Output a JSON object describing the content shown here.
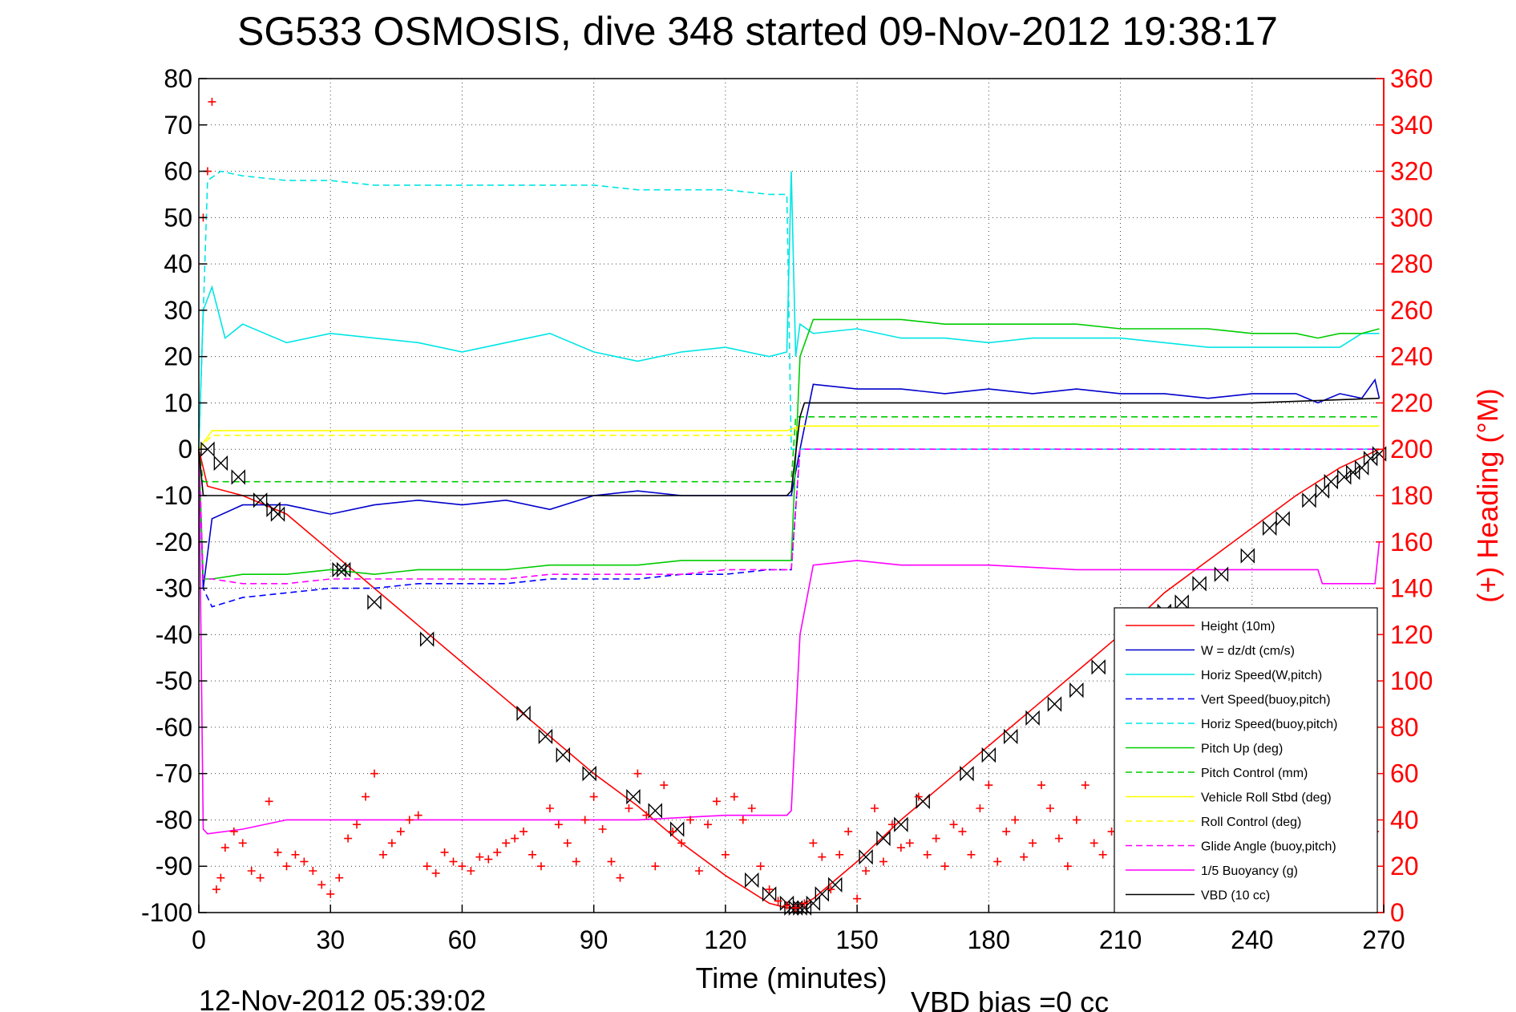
{
  "title": "SG533 OSMOSIS, dive 348 started 09-Nov-2012 19:38:17",
  "footer_date": "12-Nov-2012 05:39:02",
  "footer_vbd": "VBD bias =0 cc",
  "chart_data": {
    "type": "line",
    "title": "SG533 OSMOSIS, dive 348 started 09-Nov-2012 19:38:17",
    "xlabel": "Time (minutes)",
    "ylabel": "",
    "y2label": "(+) Heading (°M)",
    "xlim": [
      0,
      270
    ],
    "ylim": [
      -100,
      80
    ],
    "y2lim": [
      0,
      360
    ],
    "xticks": [
      "0",
      "30",
      "60",
      "90",
      "120",
      "150",
      "180",
      "210",
      "240",
      "270"
    ],
    "yticks": [
      "80",
      "70",
      "60",
      "50",
      "40",
      "30",
      "20",
      "10",
      "0",
      "-10",
      "-20",
      "-30",
      "-40",
      "-50",
      "-60",
      "-70",
      "-80",
      "-90",
      "-100"
    ],
    "y2ticks": [
      "360",
      "340",
      "320",
      "300",
      "280",
      "260",
      "240",
      "220",
      "200",
      "180",
      "160",
      "140",
      "120",
      "100",
      "80",
      "60",
      "40",
      "20",
      "0"
    ],
    "grid": true,
    "legend_position": "bottom-right",
    "series": [
      {
        "name": "Height (10m)",
        "color": "#ff0000",
        "style": "solid",
        "x": [
          0,
          2,
          10,
          20,
          30,
          40,
          50,
          60,
          70,
          80,
          90,
          100,
          110,
          120,
          130,
          134,
          136,
          140,
          150,
          160,
          170,
          180,
          190,
          200,
          210,
          220,
          230,
          240,
          250,
          260,
          269
        ],
        "values": [
          0,
          -8,
          -10,
          -14,
          -22,
          -30,
          -38,
          -46,
          -54,
          -62,
          -70,
          -77,
          -85,
          -92,
          -98,
          -99,
          -99,
          -97,
          -89,
          -80,
          -72,
          -64,
          -56,
          -48,
          -40,
          -31,
          -24,
          -17,
          -10,
          -4,
          0
        ]
      },
      {
        "name": "W = dz/dt (cm/s)",
        "color": "#0000cc",
        "style": "solid",
        "x": [
          0,
          1,
          3,
          10,
          20,
          30,
          40,
          50,
          60,
          70,
          80,
          90,
          100,
          110,
          120,
          130,
          135,
          137,
          140,
          150,
          160,
          170,
          180,
          190,
          200,
          210,
          220,
          230,
          240,
          250,
          255,
          260,
          265,
          268,
          269
        ],
        "values": [
          0,
          -30,
          -15,
          -12,
          -12,
          -14,
          -12,
          -11,
          -12,
          -11,
          -13,
          -10,
          -9,
          -10,
          -10,
          -10,
          -10,
          0,
          14,
          13,
          13,
          12,
          13,
          12,
          13,
          12,
          12,
          11,
          12,
          12,
          10,
          12,
          11,
          15,
          11
        ]
      },
      {
        "name": "Horiz Speed(W,pitch)",
        "color": "#00e5e5",
        "style": "solid",
        "x": [
          0,
          1,
          3,
          6,
          10,
          20,
          30,
          40,
          50,
          60,
          70,
          80,
          90,
          100,
          110,
          120,
          130,
          134,
          135,
          136,
          137,
          140,
          150,
          160,
          170,
          180,
          190,
          200,
          210,
          220,
          230,
          240,
          250,
          260,
          265,
          269
        ],
        "values": [
          0,
          30,
          35,
          24,
          27,
          23,
          25,
          24,
          23,
          21,
          23,
          25,
          21,
          19,
          21,
          22,
          20,
          21,
          60,
          20,
          27,
          25,
          26,
          24,
          24,
          23,
          24,
          24,
          24,
          23,
          22,
          22,
          22,
          22,
          25,
          25
        ]
      },
      {
        "name": "Vert Speed(buoy,pitch)",
        "color": "#0000ff",
        "style": "dashed",
        "x": [
          0,
          1,
          3,
          10,
          20,
          30,
          40,
          50,
          60,
          70,
          80,
          90,
          100,
          110,
          120,
          130,
          135,
          137,
          140,
          269
        ],
        "values": [
          0,
          -30,
          -34,
          -32,
          -31,
          -30,
          -30,
          -29,
          -29,
          -29,
          -28,
          -28,
          -28,
          -27,
          -27,
          -26,
          -26,
          0,
          0,
          0
        ]
      },
      {
        "name": "Horiz Speed(buoy,pitch)",
        "color": "#00e5e5",
        "style": "dashed",
        "x": [
          0,
          2,
          5,
          10,
          20,
          30,
          40,
          50,
          60,
          70,
          80,
          90,
          100,
          110,
          120,
          130,
          134,
          135,
          137,
          140,
          269
        ],
        "values": [
          0,
          58,
          60,
          59,
          58,
          58,
          57,
          57,
          57,
          57,
          57,
          57,
          56,
          56,
          56,
          55,
          55,
          0,
          0,
          0,
          0
        ]
      },
      {
        "name": "Pitch Up (deg)",
        "color": "#00cc00",
        "style": "solid",
        "x": [
          0,
          1,
          3,
          10,
          20,
          30,
          40,
          50,
          60,
          70,
          80,
          90,
          100,
          110,
          120,
          130,
          135,
          137,
          140,
          150,
          160,
          170,
          180,
          190,
          200,
          210,
          220,
          230,
          240,
          250,
          255,
          260,
          265,
          269
        ],
        "values": [
          0,
          -28,
          -28,
          -27,
          -27,
          -26,
          -27,
          -26,
          -26,
          -26,
          -25,
          -25,
          -25,
          -24,
          -24,
          -24,
          -24,
          20,
          28,
          28,
          28,
          27,
          27,
          27,
          27,
          26,
          26,
          26,
          25,
          25,
          24,
          25,
          25,
          26
        ]
      },
      {
        "name": "Pitch Control (mm)",
        "color": "#00cc00",
        "style": "dashed",
        "x": [
          0,
          1,
          3,
          30,
          60,
          90,
          120,
          135,
          136,
          140,
          180,
          220,
          269
        ],
        "values": [
          0,
          -7,
          -7,
          -7,
          -7,
          -7,
          -7,
          -7,
          7,
          7,
          7,
          7,
          7
        ]
      },
      {
        "name": "Vehicle Roll Stbd (deg)",
        "color": "#ffff00",
        "style": "solid",
        "x": [
          0,
          3,
          10,
          20,
          30,
          40,
          50,
          60,
          70,
          80,
          90,
          100,
          110,
          120,
          130,
          134,
          137,
          140,
          150,
          160,
          170,
          180,
          190,
          200,
          210,
          220,
          230,
          240,
          250,
          260,
          269
        ],
        "values": [
          0,
          4,
          4,
          4,
          4,
          4,
          4,
          4,
          4,
          4,
          4,
          4,
          4,
          4,
          4,
          4,
          5,
          5,
          5,
          5,
          5,
          5,
          5,
          5,
          5,
          5,
          5,
          5,
          5,
          5,
          5
        ]
      },
      {
        "name": "Roll Control (deg)",
        "color": "#ffff00",
        "style": "dashed",
        "x": [
          0,
          3,
          30,
          60,
          90,
          120,
          135,
          137,
          180,
          220,
          269
        ],
        "values": [
          0,
          3,
          3,
          3,
          3,
          3,
          3,
          5,
          5,
          5,
          5
        ]
      },
      {
        "name": "Glide Angle (buoy,pitch)",
        "color": "#ff00ff",
        "style": "dashed",
        "x": [
          0,
          1,
          3,
          10,
          20,
          30,
          40,
          50,
          60,
          70,
          80,
          90,
          100,
          110,
          120,
          130,
          135,
          137,
          140,
          269
        ],
        "values": [
          0,
          -28,
          -28,
          -29,
          -29,
          -28,
          -28,
          -28,
          -28,
          -28,
          -27,
          -27,
          -27,
          -27,
          -26,
          -26,
          -26,
          0,
          0,
          0
        ]
      },
      {
        "name": "1/5 Buoyancy (g)",
        "color": "#ff00ff",
        "style": "solid",
        "x": [
          0,
          1,
          2,
          10,
          20,
          40,
          60,
          80,
          100,
          120,
          134,
          135,
          137,
          140,
          150,
          160,
          180,
          200,
          220,
          240,
          255,
          256,
          260,
          268,
          269
        ],
        "values": [
          0,
          -82,
          -83,
          -82,
          -80,
          -80,
          -80,
          -80,
          -80,
          -79,
          -79,
          -78,
          -40,
          -25,
          -24,
          -25,
          -25,
          -26,
          -26,
          -26,
          -26,
          -29,
          -29,
          -29,
          -20
        ]
      },
      {
        "name": "VBD (10 cc)",
        "color": "#000000",
        "style": "solid",
        "x": [
          0,
          1,
          3,
          30,
          60,
          90,
          120,
          134,
          135,
          137,
          138,
          160,
          200,
          240,
          269
        ],
        "values": [
          0,
          -10,
          -10,
          -10,
          -10,
          -10,
          -10,
          -10,
          -9,
          7,
          10,
          10,
          10,
          10,
          11
        ]
      }
    ],
    "heading_deg": {
      "color": "#ff0000",
      "marker": "+",
      "axis": "right",
      "x": [
        1,
        2,
        3,
        4,
        5,
        6,
        8,
        10,
        12,
        14,
        16,
        18,
        20,
        22,
        24,
        26,
        28,
        30,
        32,
        34,
        36,
        38,
        40,
        42,
        44,
        46,
        48,
        50,
        52,
        54,
        56,
        58,
        60,
        62,
        64,
        66,
        68,
        70,
        72,
        74,
        76,
        78,
        80,
        82,
        84,
        86,
        88,
        90,
        92,
        94,
        96,
        98,
        100,
        102,
        104,
        106,
        108,
        110,
        112,
        114,
        116,
        118,
        120,
        122,
        124,
        126,
        128,
        130,
        132,
        134,
        136,
        138,
        140,
        142,
        144,
        146,
        148,
        150,
        152,
        154,
        156,
        158,
        160,
        162,
        164,
        166,
        168,
        170,
        172,
        174,
        176,
        178,
        180,
        182,
        184,
        186,
        188,
        190,
        192,
        194,
        196,
        198,
        200,
        202,
        204,
        206,
        208,
        210,
        212,
        214,
        216,
        218,
        220,
        222,
        224,
        226,
        228,
        230,
        232,
        234,
        236,
        238,
        240,
        242,
        244,
        246,
        248,
        250,
        252,
        254,
        256,
        258,
        260,
        262,
        264,
        266,
        268
      ],
      "values": [
        300,
        320,
        350,
        10,
        15,
        28,
        35,
        30,
        18,
        15,
        48,
        26,
        20,
        25,
        22,
        18,
        12,
        8,
        15,
        32,
        38,
        50,
        60,
        25,
        30,
        35,
        40,
        42,
        20,
        17,
        26,
        22,
        20,
        18,
        24,
        23,
        26,
        30,
        32,
        35,
        25,
        20,
        45,
        38,
        30,
        22,
        40,
        50,
        36,
        22,
        15,
        45,
        60,
        42,
        20,
        55,
        35,
        30,
        40,
        18,
        38,
        48,
        25,
        50,
        40,
        45,
        20,
        10,
        5,
        3,
        2,
        4,
        30,
        24,
        10,
        25,
        35,
        6,
        18,
        45,
        22,
        38,
        28,
        30,
        50,
        25,
        32,
        20,
        38,
        35,
        25,
        45,
        55,
        22,
        35,
        40,
        24,
        30,
        55,
        45,
        32,
        20,
        40,
        55,
        30,
        25,
        35,
        28,
        35,
        40,
        24,
        48,
        30,
        55,
        40,
        25,
        55,
        35,
        40,
        35,
        25,
        35,
        45,
        35,
        20,
        45,
        30,
        25,
        35,
        48,
        35,
        25,
        40,
        35,
        25,
        42,
        35
      ]
    },
    "dive_markers": {
      "color": "#000000",
      "marker": "triangle-hourglass",
      "x": [
        2,
        5,
        9,
        14,
        17,
        18,
        32,
        33,
        40,
        52,
        74,
        79,
        83,
        89,
        99,
        104,
        109,
        126,
        130,
        134,
        135,
        136,
        137,
        138,
        140,
        142,
        145,
        152,
        156,
        160,
        165,
        175,
        180,
        185,
        190,
        195,
        200,
        205,
        215,
        220,
        224,
        228,
        233,
        239,
        244,
        247,
        253,
        256,
        258,
        261,
        263,
        265,
        267,
        269
      ],
      "values": [
        0,
        -3,
        -6,
        -11,
        -13,
        -14,
        -26,
        -26,
        -33,
        -41,
        -57,
        -62,
        -66,
        -70,
        -75,
        -78,
        -82,
        -93,
        -96,
        -98,
        -99,
        -99,
        -99,
        -99,
        -98,
        -96,
        -94,
        -88,
        -84,
        -81,
        -76,
        -70,
        -66,
        -62,
        -58,
        -55,
        -52,
        -47,
        -39,
        -35,
        -33,
        -29,
        -27,
        -23,
        -17,
        -15,
        -11,
        -9,
        -7,
        -6,
        -5,
        -4,
        -2,
        -1
      ]
    }
  }
}
